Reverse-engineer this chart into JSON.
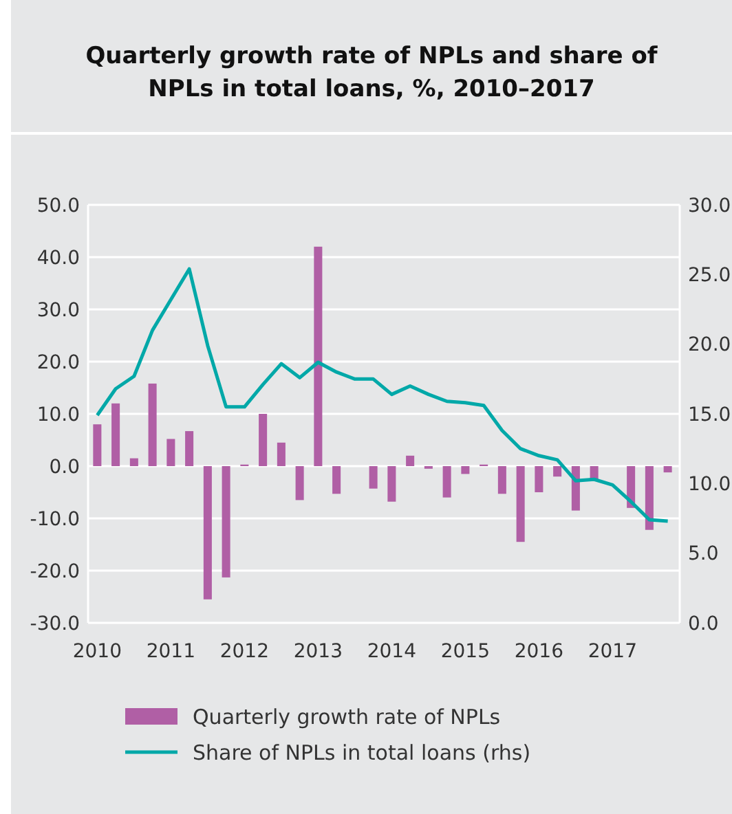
{
  "chart_data": {
    "type": "bar",
    "title": "Quarterly growth rate of NPLs and share of NPLs in total loans, %, 2010–2017",
    "categories": [
      "2010",
      null,
      null,
      null,
      "2011",
      null,
      null,
      null,
      "2012",
      null,
      null,
      null,
      "2013",
      null,
      null,
      null,
      "2014",
      null,
      null,
      null,
      "2015",
      null,
      null,
      null,
      "2016",
      null,
      null,
      null,
      "2017",
      null,
      null,
      null
    ],
    "series": [
      {
        "name": "Quarterly growth rate of NPLs",
        "color": "#b05fa5",
        "values": [
          8,
          12,
          1.5,
          15.8,
          5.2,
          6.7,
          -25.5,
          -21.3,
          0.3,
          10,
          4.5,
          -6.5,
          42,
          -5.3,
          0,
          -4.3,
          -6.8,
          2,
          -0.5,
          -6,
          -1.5,
          0.3,
          -5.3,
          -14.5,
          -5,
          -2,
          -8.5,
          -2.6,
          0,
          -8,
          -12.2,
          -1.2
        ]
      },
      {
        "name": "Share of NPLs in total loans (rhs)",
        "type": "line",
        "axis": "y2",
        "color": "#00a8a8",
        "values": [
          14.9,
          16.8,
          17.7,
          21,
          23.2,
          25.4,
          19.9,
          15.5,
          15.5,
          17.1,
          18.6,
          17.6,
          18.7,
          18,
          17.5,
          17.5,
          16.4,
          17,
          16.4,
          15.9,
          15.8,
          15.6,
          13.8,
          12.5,
          12,
          11.7,
          10.2,
          10.3,
          9.9,
          8.7,
          7.4,
          7.3
        ]
      }
    ],
    "ylim": [
      -30,
      50
    ],
    "yticks": [
      {
        "value": -30,
        "label": "-30.0"
      },
      {
        "value": -20,
        "label": "-20.0"
      },
      {
        "value": -10,
        "label": "-10.0"
      },
      {
        "value": 0,
        "label": "0.0"
      },
      {
        "value": 10,
        "label": "10.0"
      },
      {
        "value": 20,
        "label": "20.0"
      },
      {
        "value": 30,
        "label": "30.0"
      },
      {
        "value": 40,
        "label": "40.0"
      },
      {
        "value": 50,
        "label": "50.0"
      }
    ],
    "y2lim": [
      0,
      30
    ],
    "y2ticks": [
      {
        "value": 0,
        "label": "0.0"
      },
      {
        "value": 5,
        "label": "5.0"
      },
      {
        "value": 10,
        "label": "10.0"
      },
      {
        "value": 15,
        "label": "15.0"
      },
      {
        "value": 20,
        "label": "20.0"
      },
      {
        "value": 25,
        "label": "25.0"
      },
      {
        "value": 30,
        "label": "30.0"
      }
    ],
    "grid": "y",
    "legend": "bottom",
    "line_style": "solid",
    "marker": "none"
  }
}
